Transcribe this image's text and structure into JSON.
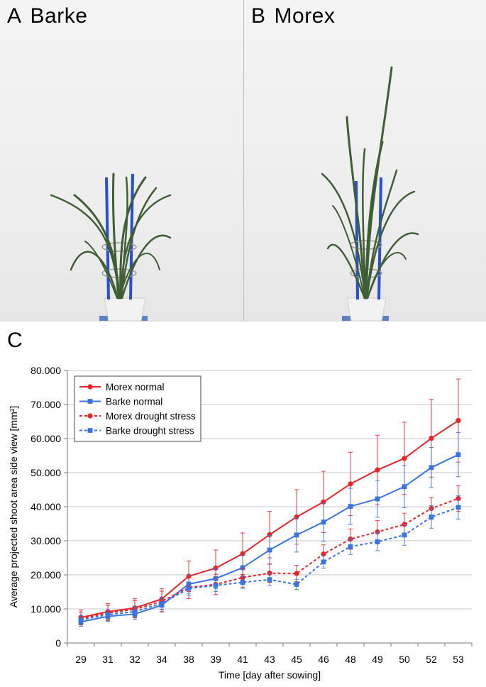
{
  "panels": {
    "a": {
      "letter": "A",
      "name": "Barke"
    },
    "b": {
      "letter": "B",
      "name": "Morex"
    },
    "c": {
      "letter": "C"
    }
  },
  "colors": {
    "morex": "#e8262a",
    "barke": "#3b74e0",
    "plant": "#3f5e36",
    "stake": "#2b4fc9",
    "pot": "#f2f2f2"
  },
  "chart_data": {
    "type": "line",
    "categories": [
      "29",
      "31",
      "32",
      "34",
      "38",
      "39",
      "41",
      "43",
      "45",
      "46",
      "48",
      "49",
      "50",
      "52",
      "53"
    ],
    "xlabel": "Time [day after sowing]",
    "ylabel": "Average projected shoot area side view [mm²]",
    "ylim": [
      0,
      80000
    ],
    "yticks": [
      "0",
      "10.000",
      "20.000",
      "30.000",
      "40.000",
      "50.000",
      "60.000",
      "70.000",
      "80.000"
    ],
    "grid": true,
    "legend_position": "top-left",
    "series": [
      {
        "name": "Morex normal",
        "color": "#e8262a",
        "dash": "solid",
        "marker": "circle",
        "values": [
          7500,
          9200,
          10300,
          12900,
          19600,
          22000,
          26200,
          31800,
          37000,
          41400,
          46700,
          50800,
          54200,
          60100,
          65300
        ],
        "errors": [
          2200,
          2400,
          2700,
          3000,
          4500,
          5300,
          6100,
          6800,
          8000,
          9000,
          9300,
          10200,
          10600,
          11400,
          12200
        ]
      },
      {
        "name": "Barke normal",
        "color": "#3b74e0",
        "dash": "solid",
        "marker": "square",
        "values": [
          6200,
          7800,
          8500,
          11100,
          17300,
          18900,
          22100,
          27300,
          31700,
          35500,
          40100,
          42300,
          45900,
          51500,
          55300
        ],
        "errors": [
          1300,
          1500,
          1600,
          2000,
          2700,
          3000,
          3600,
          4200,
          5000,
          5600,
          5300,
          5400,
          6200,
          5900,
          6500
        ]
      },
      {
        "name": "Morex drought stress",
        "color": "#e8262a",
        "dash": "dashed",
        "marker": "circle",
        "values": [
          7200,
          8800,
          9900,
          12200,
          16300,
          17200,
          19200,
          20500,
          20400,
          26100,
          30500,
          32600,
          34800,
          39500,
          42400
        ],
        "errors": [
          1900,
          2200,
          2500,
          3000,
          3300,
          3000,
          2800,
          2700,
          2400,
          2700,
          3000,
          3300,
          3300,
          3200,
          3800
        ]
      },
      {
        "name": "Barke drought stress",
        "color": "#3b74e0",
        "dash": "dashed",
        "marker": "square",
        "values": [
          6800,
          8300,
          9200,
          11600,
          16000,
          16900,
          17800,
          18600,
          17200,
          23800,
          28300,
          29700,
          31700,
          37000,
          39800
        ],
        "errors": [
          1300,
          1400,
          1500,
          1700,
          1900,
          1800,
          1800,
          1700,
          1500,
          1800,
          2300,
          2600,
          3000,
          3300,
          3400
        ]
      }
    ]
  }
}
